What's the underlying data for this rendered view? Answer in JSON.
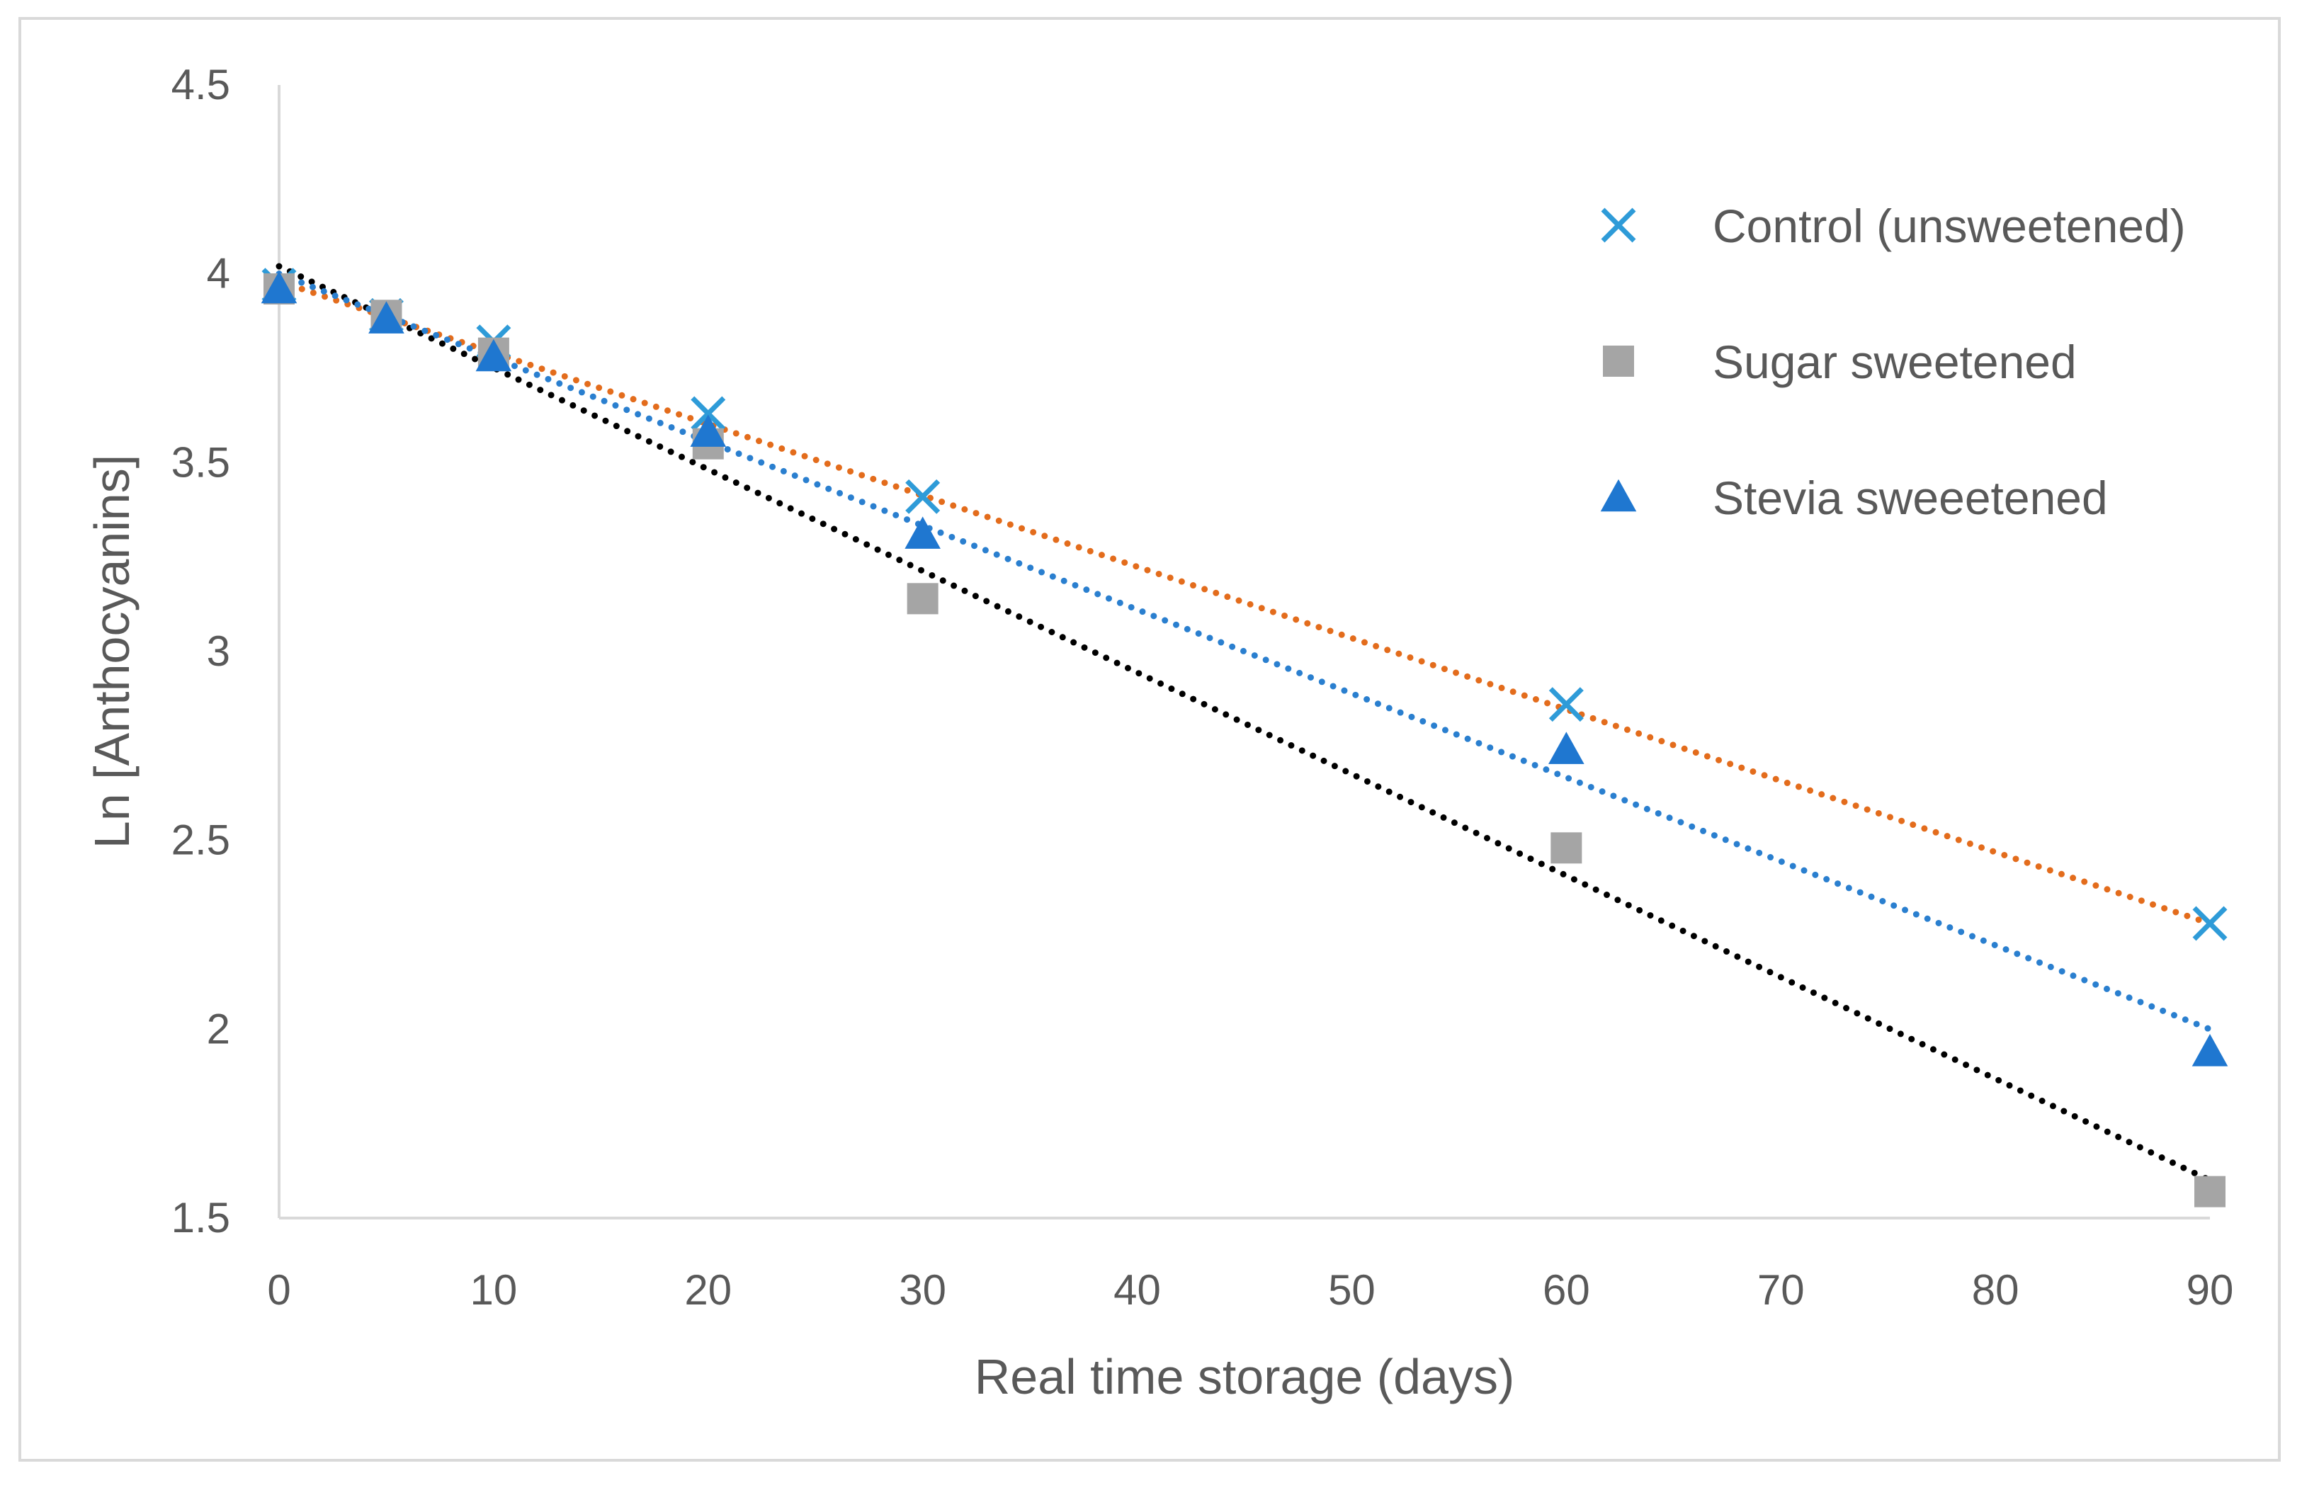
{
  "chart_data": {
    "type": "scatter",
    "title": "",
    "xlabel": "Real time storage (days)",
    "ylabel": "Ln [Anthocyanins]",
    "xlim": [
      0,
      90
    ],
    "ylim": [
      1.5,
      4.5
    ],
    "xticks": [
      "0",
      "10",
      "20",
      "30",
      "40",
      "50",
      "60",
      "70",
      "80",
      "90"
    ],
    "yticks": [
      "1.5",
      "2",
      "2.5",
      "3",
      "3.5",
      "4",
      "4.5"
    ],
    "grid": false,
    "legend": "right",
    "series": [
      {
        "name": "Control (unsweetened)",
        "marker": "x-icon",
        "color": "#2E9BD8",
        "x": [
          0,
          5,
          10,
          20,
          30,
          60,
          90
        ],
        "y": [
          3.97,
          3.89,
          3.82,
          3.63,
          3.41,
          2.86,
          2.28
        ],
        "trendline": {
          "color": "#E36C1C",
          "x": [
            0,
            90
          ],
          "y": [
            3.98,
            2.28
          ]
        }
      },
      {
        "name": "Sugar sweetened",
        "marker": "square-icon",
        "color": "#A5A5A5",
        "x": [
          0,
          5,
          10,
          20,
          30,
          60,
          90
        ],
        "y": [
          3.96,
          3.89,
          3.79,
          3.55,
          3.14,
          2.48,
          1.57
        ],
        "trendline": {
          "color": "#000000",
          "x": [
            0,
            90
          ],
          "y": [
            4.02,
            1.6
          ]
        }
      },
      {
        "name": "Stevia sweeetened",
        "marker": "triangle-icon",
        "color": "#1F77D0",
        "x": [
          0,
          5,
          10,
          20,
          30,
          60,
          90
        ],
        "y": [
          3.96,
          3.88,
          3.78,
          3.58,
          3.31,
          2.74,
          1.94
        ],
        "trendline": {
          "color": "#2A7FCF",
          "x": [
            0,
            90
          ],
          "y": [
            4.0,
            2.0
          ]
        }
      }
    ]
  }
}
